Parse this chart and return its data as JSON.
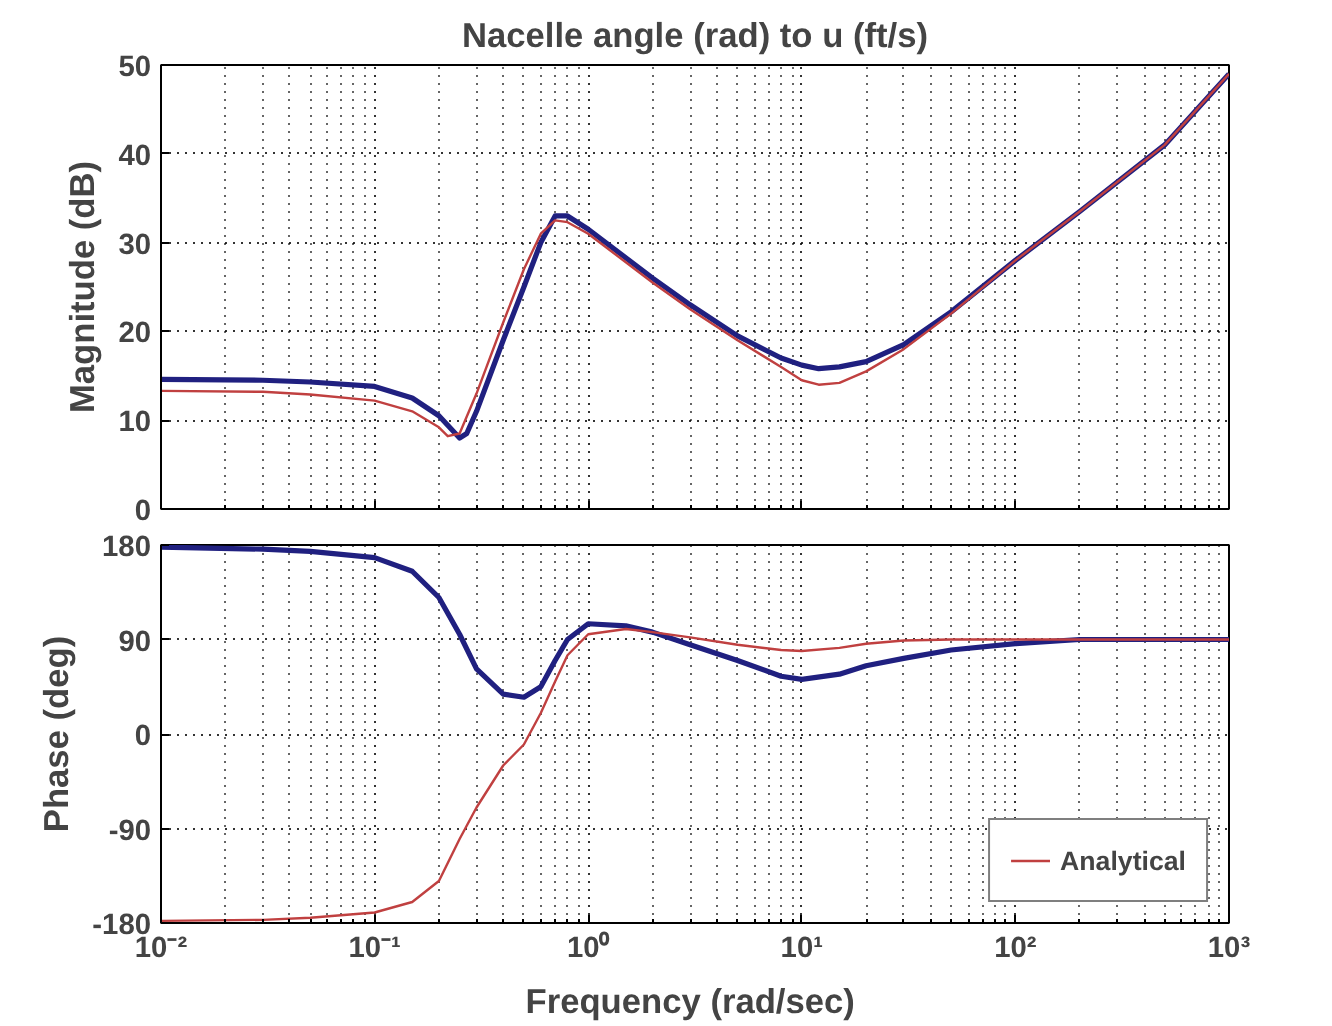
{
  "chart_data": [
    {
      "type": "line",
      "title": "Nacelle angle (rad) to u (ft/s)",
      "ylabel": "Magnitude (dB)",
      "log": "x",
      "grid": true,
      "tick_labels": "y",
      "legend": false,
      "xlim": [
        0.01,
        1000
      ],
      "xticks": [
        {
          "value": 0.01,
          "label": null
        },
        {
          "value": 0.1,
          "label": null
        },
        {
          "value": 1,
          "label": null
        },
        {
          "value": 10,
          "label": null
        },
        {
          "value": 100,
          "label": null
        },
        {
          "value": 1000,
          "label": null
        }
      ],
      "ylim": [
        0,
        50
      ],
      "yticks": [
        0,
        10,
        20,
        30,
        40,
        50
      ],
      "series": [
        {
          "color": "#c04040",
          "x": [
            0.01,
            0.03,
            0.05,
            0.1,
            0.15,
            0.2,
            0.22,
            0.25,
            0.3,
            0.4,
            0.5,
            0.6,
            0.7,
            0.8,
            1,
            2,
            3,
            5,
            8,
            10,
            12,
            15,
            20,
            30,
            50,
            100,
            200,
            500,
            1000
          ],
          "values": [
            13.3,
            13.2,
            12.9,
            12.2,
            11,
            9.2,
            8.2,
            8.5,
            13,
            21,
            27,
            31,
            32.5,
            32.3,
            31,
            25.5,
            22.5,
            19,
            16,
            14.5,
            14,
            14.2,
            15.5,
            18,
            22,
            28,
            33.5,
            41,
            49
          ]
        },
        {
          "color": "#202080",
          "x": [
            0.01,
            0.03,
            0.05,
            0.1,
            0.15,
            0.2,
            0.25,
            0.27,
            0.3,
            0.4,
            0.5,
            0.6,
            0.7,
            0.8,
            1,
            2,
            3,
            5,
            8,
            10,
            12,
            15,
            20,
            30,
            50,
            100,
            200,
            500,
            1000
          ],
          "values": [
            14.6,
            14.5,
            14.3,
            13.8,
            12.5,
            10.5,
            8,
            8.5,
            11,
            19,
            25,
            30,
            33,
            33,
            31.5,
            26,
            23,
            19.5,
            17,
            16.2,
            15.8,
            16,
            16.6,
            18.5,
            22.2,
            28,
            33.5,
            41,
            49
          ]
        }
      ]
    },
    {
      "type": "line",
      "xlabel": "Frequency  (rad/sec)",
      "ylabel": "Phase (deg)",
      "log": "x",
      "grid": true,
      "legend": "bottom right",
      "xlim": [
        0.01,
        1000
      ],
      "xticks": [
        {
          "value": 0.01,
          "label": "10⁻²"
        },
        {
          "value": 0.1,
          "label": "10⁻¹"
        },
        {
          "value": 1,
          "label": "10⁰"
        },
        {
          "value": 10,
          "label": "10¹"
        },
        {
          "value": 100,
          "label": "10²"
        },
        {
          "value": 1000,
          "label": "10³"
        }
      ],
      "ylim": [
        -180,
        180
      ],
      "yticks": [
        -180,
        -90,
        0,
        90,
        180
      ],
      "series": [
        {
          "name": "Analytical",
          "color": "#c04040",
          "x": [
            0.01,
            0.03,
            0.05,
            0.1,
            0.15,
            0.2,
            0.25,
            0.3,
            0.4,
            0.5,
            0.6,
            0.7,
            0.8,
            1,
            1.5,
            2,
            3,
            5,
            8,
            10,
            15,
            20,
            30,
            50,
            100,
            1000
          ],
          "values": [
            -178,
            -177,
            -175,
            -170,
            -160,
            -140,
            -100,
            -70,
            -30,
            -10,
            20,
            50,
            75,
            95,
            100,
            97,
            92,
            85,
            80,
            79,
            82,
            86,
            89,
            90,
            90,
            90
          ]
        },
        {
          "color": "#202080",
          "x": [
            0.01,
            0.03,
            0.05,
            0.1,
            0.15,
            0.2,
            0.25,
            0.3,
            0.4,
            0.5,
            0.6,
            0.7,
            0.8,
            1,
            1.5,
            2,
            3,
            5,
            8,
            10,
            15,
            20,
            30,
            50,
            100,
            200,
            1000
          ],
          "values": [
            178,
            176,
            174,
            168,
            155,
            130,
            95,
            62,
            38,
            35,
            45,
            70,
            90,
            105,
            103,
            97,
            85,
            70,
            55,
            52,
            57,
            65,
            72,
            80,
            86,
            90,
            90
          ]
        }
      ]
    }
  ]
}
